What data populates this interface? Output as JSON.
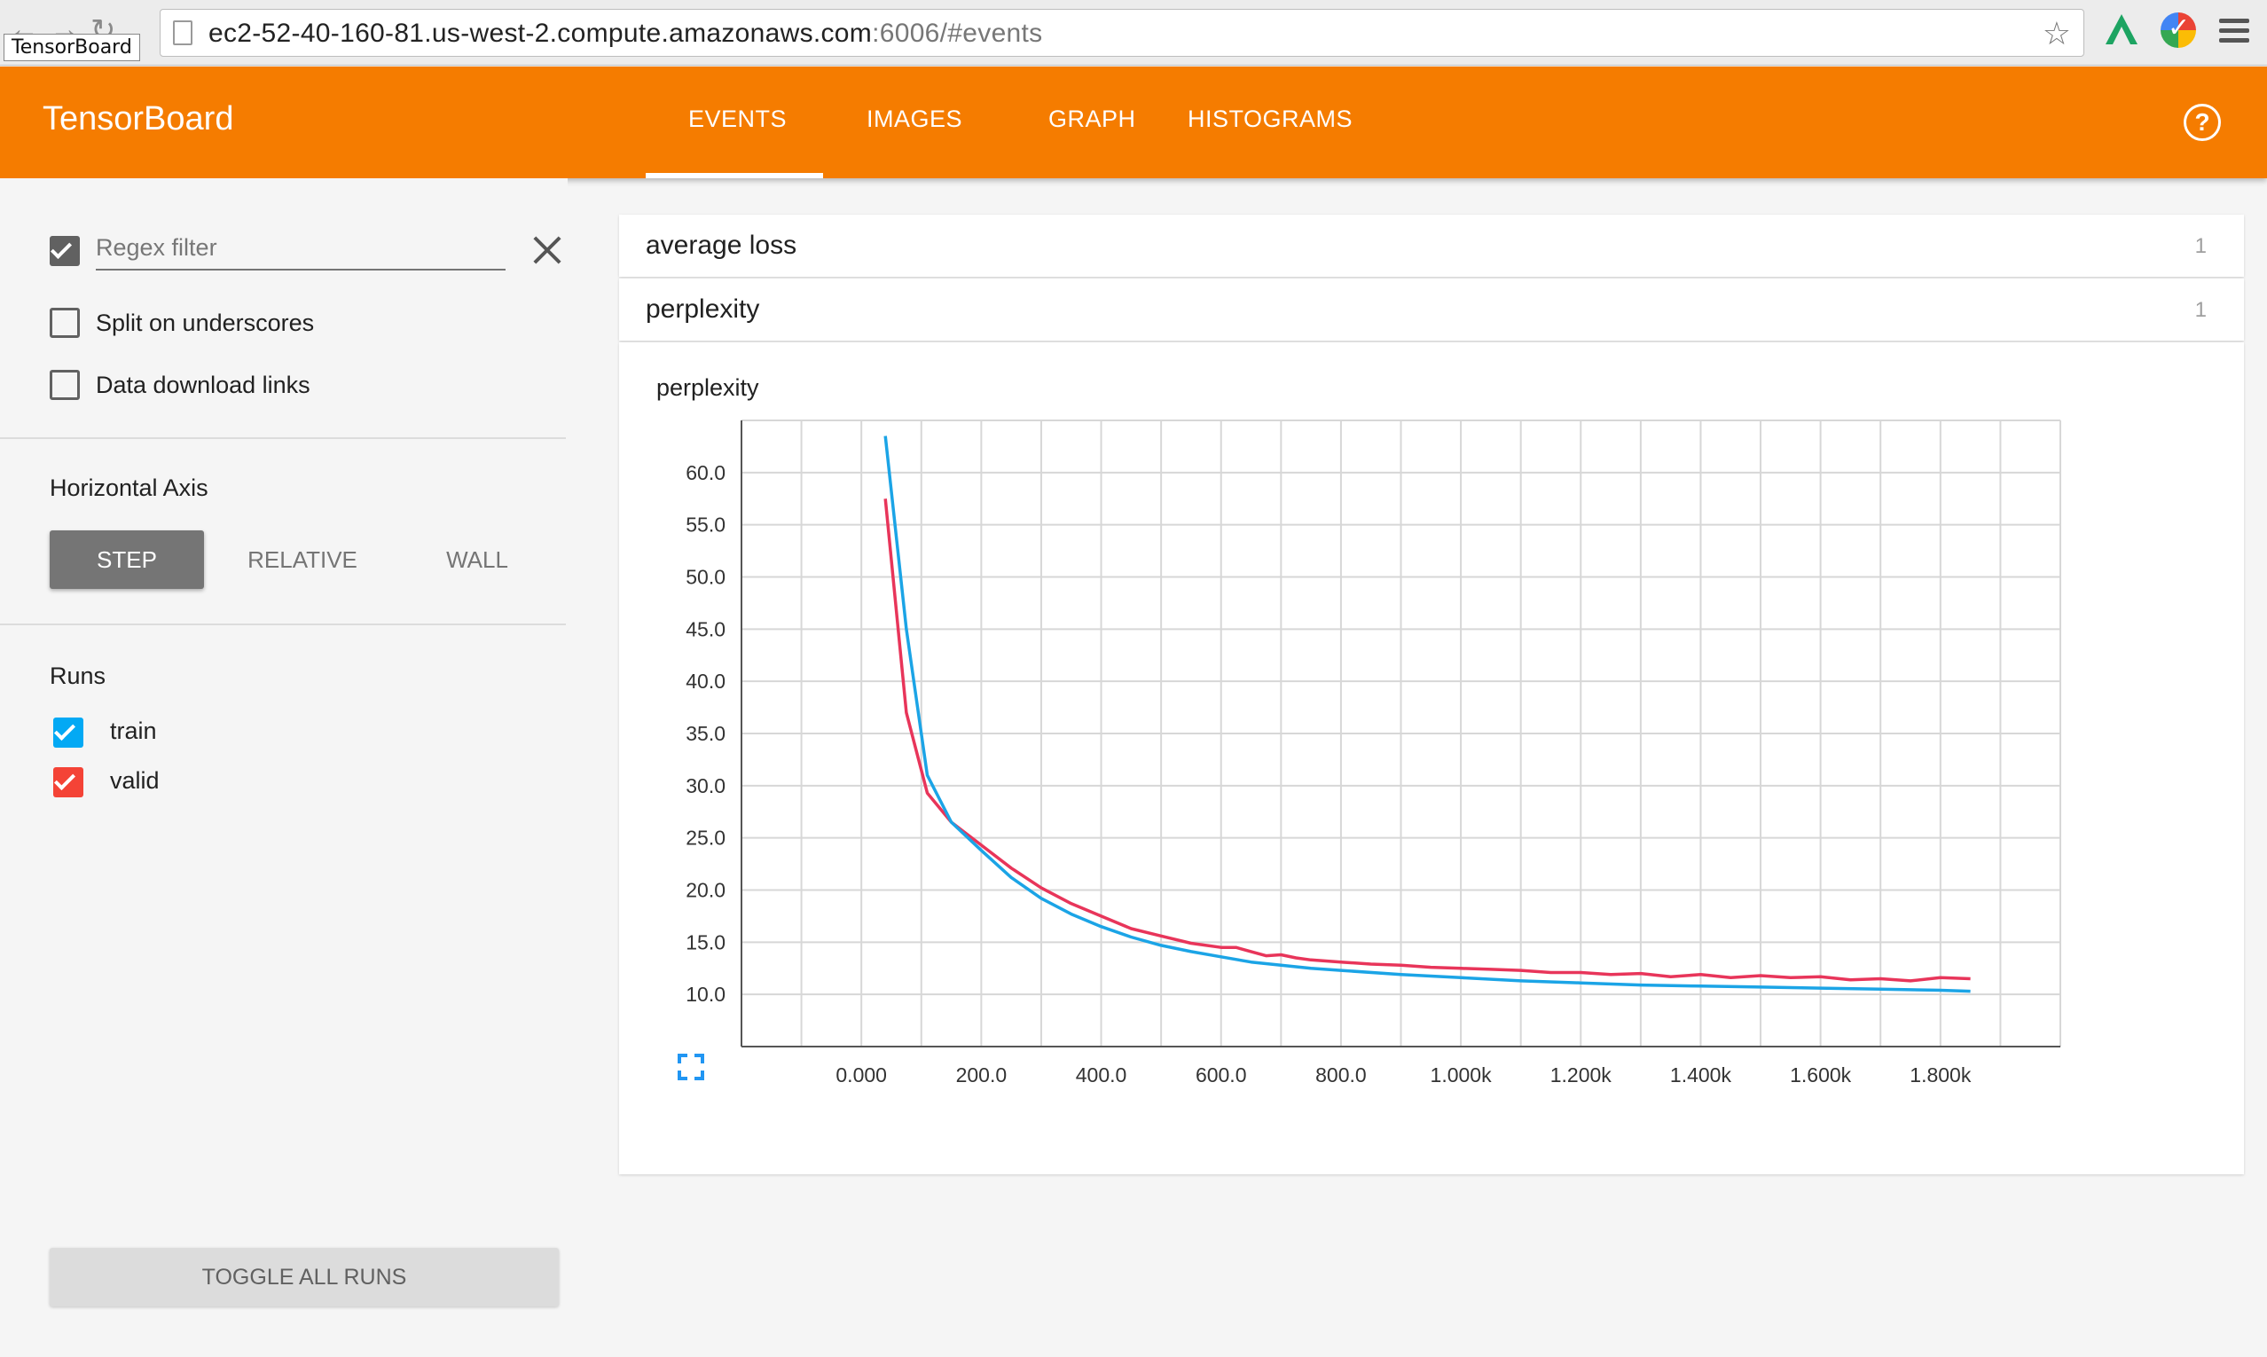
{
  "browser": {
    "tooltip": "TensorBoard",
    "url_host": "ec2-52-40-160-81.us-west-2.compute.amazonaws.com",
    "url_rest": ":6006/#events"
  },
  "header": {
    "title": "TensorBoard",
    "tabs": [
      "EVENTS",
      "IMAGES",
      "GRAPH",
      "HISTOGRAMS"
    ],
    "active_tab": "EVENTS",
    "accent": "#f57c00"
  },
  "sidebar": {
    "regex_filter_placeholder": "Regex filter",
    "regex_checked": true,
    "split_underscores_label": "Split on underscores",
    "split_underscores_checked": false,
    "download_links_label": "Data download links",
    "download_links_checked": false,
    "horizontal_axis_title": "Horizontal Axis",
    "axis_options": [
      "STEP",
      "RELATIVE",
      "WALL"
    ],
    "axis_selected": "STEP",
    "runs_title": "Runs",
    "runs": [
      {
        "name": "train",
        "color": "#03a9f4",
        "checked": true
      },
      {
        "name": "valid",
        "color": "#f44336",
        "checked": true
      }
    ],
    "toggle_all_label": "TOGGLE ALL RUNS"
  },
  "categories": [
    {
      "name": "average loss",
      "count": "1"
    },
    {
      "name": "perplexity",
      "count": "1"
    }
  ],
  "chart_data": {
    "type": "line",
    "title": "perplexity",
    "xlabel": "",
    "ylabel": "",
    "xlim": [
      -200,
      2000
    ],
    "ylim": [
      5,
      65
    ],
    "x_ticks": [
      "0.000",
      "200.0",
      "400.0",
      "600.0",
      "800.0",
      "1.000k",
      "1.200k",
      "1.400k",
      "1.600k",
      "1.800k"
    ],
    "y_ticks": [
      "10.0",
      "15.0",
      "20.0",
      "25.0",
      "30.0",
      "35.0",
      "40.0",
      "45.0",
      "50.0",
      "55.0",
      "60.0"
    ],
    "grid": true,
    "series": [
      {
        "name": "train",
        "color": "#1ba4e6",
        "x": [
          40,
          75,
          110,
          150,
          200,
          250,
          300,
          350,
          400,
          450,
          500,
          550,
          600,
          650,
          700,
          750,
          800,
          900,
          1000,
          1100,
          1200,
          1300,
          1400,
          1500,
          1600,
          1700,
          1800,
          1850
        ],
        "y": [
          63.5,
          45,
          31,
          26.5,
          23.8,
          21.2,
          19.2,
          17.7,
          16.5,
          15.5,
          14.7,
          14.1,
          13.6,
          13.1,
          12.8,
          12.5,
          12.3,
          11.9,
          11.6,
          11.3,
          11.1,
          10.9,
          10.8,
          10.7,
          10.6,
          10.5,
          10.4,
          10.3
        ]
      },
      {
        "name": "valid",
        "color": "#e8355a",
        "x": [
          40,
          75,
          110,
          150,
          200,
          250,
          300,
          350,
          400,
          450,
          500,
          550,
          600,
          625,
          650,
          675,
          700,
          725,
          750,
          800,
          850,
          900,
          950,
          1000,
          1050,
          1100,
          1150,
          1200,
          1250,
          1300,
          1350,
          1400,
          1450,
          1500,
          1550,
          1600,
          1650,
          1700,
          1750,
          1800,
          1850
        ],
        "y": [
          57.5,
          37,
          29.3,
          26.5,
          24.3,
          22.1,
          20.2,
          18.7,
          17.5,
          16.3,
          15.6,
          14.9,
          14.5,
          14.5,
          14.1,
          13.7,
          13.8,
          13.5,
          13.3,
          13.1,
          12.9,
          12.8,
          12.6,
          12.5,
          12.4,
          12.3,
          12.1,
          12.1,
          11.9,
          12.0,
          11.7,
          11.9,
          11.6,
          11.8,
          11.6,
          11.7,
          11.4,
          11.5,
          11.3,
          11.6,
          11.5
        ]
      }
    ]
  }
}
